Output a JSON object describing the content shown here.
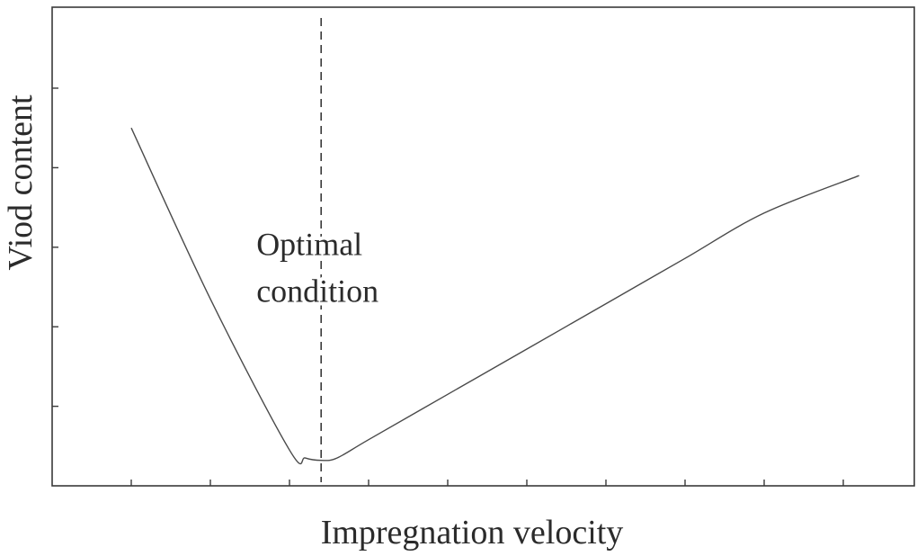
{
  "chart_data": {
    "type": "line",
    "title": "",
    "xlabel": "Impregnation velocity",
    "ylabel": "Viod content",
    "xlim": [
      0,
      10
    ],
    "ylim": [
      0,
      6
    ],
    "x_ticks": [
      1,
      2,
      3,
      4,
      5,
      6,
      7,
      8,
      9,
      10
    ],
    "y_ticks": [
      1,
      2,
      3,
      4,
      5
    ],
    "tick_labels_shown": false,
    "grid": false,
    "series": [
      {
        "x": [
          1.0,
          2.0,
          3.0,
          3.2,
          3.4,
          3.6,
          4.0,
          5.0,
          6.0,
          7.0,
          8.0,
          9.0,
          10.2
        ],
        "y": [
          4.5,
          2.35,
          0.45,
          0.35,
          0.32,
          0.35,
          0.58,
          1.15,
          1.72,
          2.29,
          2.86,
          3.43,
          3.9
        ]
      }
    ],
    "reference_line": {
      "orientation": "vertical",
      "x": 3.4,
      "style": "dashed"
    },
    "annotations": [
      {
        "lines": [
          "Optimal",
          "condition"
        ],
        "x": 3.4,
        "y": 2.9
      }
    ],
    "colors": {
      "line": "#4a4a4a",
      "axis": "#3a3a3a",
      "text": "#2b2b2b"
    }
  }
}
